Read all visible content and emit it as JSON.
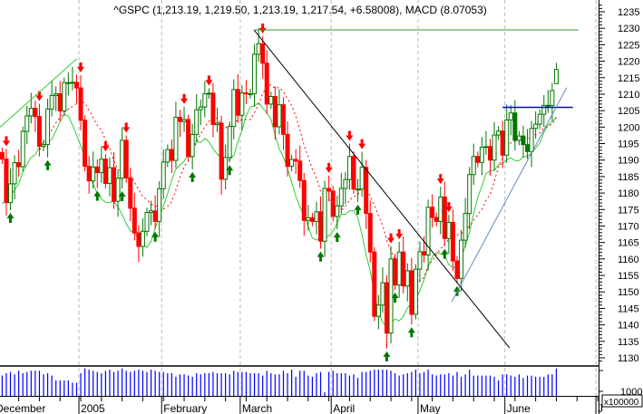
{
  "chart_data": {
    "type": "candlestick",
    "title": "^GSPC (1,213.19, 1,219.50, 1,213.19, 1,217.54, +6.58008), MACD (8.07053)",
    "ylim": [
      1128,
      1238
    ],
    "y_ticks": [
      "1235",
      "1230",
      "1225",
      "1220",
      "1215",
      "1210",
      "1205",
      "1200",
      "1195",
      "1190",
      "1185",
      "1180",
      "1175",
      "1170",
      "1165",
      "1160",
      "1155",
      "1150",
      "1145",
      "1140",
      "1135",
      "1130"
    ],
    "x_labels": [
      {
        "label": "December",
        "index": -4
      },
      {
        "label": "2005",
        "index": 19
      },
      {
        "label": "February",
        "index": 39
      },
      {
        "label": "March",
        "index": 58
      },
      {
        "label": "April",
        "index": 80
      },
      {
        "label": "May",
        "index": 101
      },
      {
        "label": "June",
        "index": 122
      },
      {
        "label": "J",
        "index": 144
      }
    ],
    "close": [
      1190.3,
      1177.1,
      1182.8,
      1189.2,
      1188.0,
      1198.7,
      1203.4,
      1205.7,
      1203.2,
      1194.2,
      1194.7,
      1205.5,
      1209.6,
      1210.1,
      1204.9,
      1213.5,
      1213.5,
      1213.6,
      1211.9,
      1202.1,
      1188.1,
      1183.7,
      1187.9,
      1186.2,
      1190.3,
      1182.9,
      1187.7,
      1177.5,
      1184.5,
      1196.0,
      1184.6,
      1175.4,
      1167.9,
      1163.8,
      1168.4,
      1174.1,
      1174.6,
      1171.4,
      1181.3,
      1189.4,
      1193.2,
      1189.9,
      1203.0,
      1201.7,
      1202.3,
      1191.1,
      1197.8,
      1205.3,
      1206.1,
      1210.1,
      1210.3,
      1200.8,
      1201.2,
      1184.2,
      1190.8,
      1200.2,
      1211.4,
      1203.6,
      1210.4,
      1210.1,
      1210.1,
      1222.1,
      1225.3,
      1219.4,
      1207.0,
      1209.3,
      1200.1,
      1206.8,
      1197.8,
      1188.1,
      1190.2,
      1189.7,
      1183.8,
      1171.7,
      1172.5,
      1171.4,
      1174.3,
      1165.4,
      1181.4,
      1180.6,
      1172.9,
      1176.1,
      1181.4,
      1184.1,
      1191.1,
      1181.2,
      1181.2,
      1187.8,
      1173.8,
      1162.1,
      1142.6,
      1146.0,
      1152.8,
      1137.5,
      1160.0,
      1152.1,
      1162.1,
      1151.8,
      1156.4,
      1143.2,
      1156.9,
      1162.2,
      1161.2,
      1175.7,
      1172.6,
      1171.4,
      1178.8,
      1166.2,
      1171.1,
      1159.4,
      1154.1,
      1165.7,
      1173.8,
      1185.6,
      1191.1,
      1189.3,
      1193.9,
      1194.1,
      1190.0,
      1197.6,
      1198.8,
      1191.5,
      1202.2,
      1204.3,
      1196.0,
      1197.3,
      1194.7,
      1192.6,
      1199.6,
      1200.9,
      1203.9,
      1206.6,
      1206.6,
      1211.1,
      1217.5
    ],
    "last_candle": {
      "open": 1213.19,
      "high": 1219.5,
      "low": 1213.19,
      "close": 1217.54,
      "change": 6.58008
    },
    "sell_arrows": [
      1,
      9,
      19,
      25,
      30,
      44,
      50,
      63,
      79,
      84,
      87,
      94,
      96,
      106,
      108
    ],
    "buy_arrows": [
      2,
      11,
      23,
      29,
      37,
      46,
      55,
      77,
      81,
      86,
      93,
      95,
      99,
      107,
      110
    ],
    "trendlines": [
      {
        "from": [
          -0.5,
          1200
        ],
        "to": [
          18,
          1220.7
        ],
        "color": "#33cc33"
      },
      {
        "from": [
          60.9,
          1229.5
        ],
        "to": [
          122.7,
          1133
        ],
        "color": "#000000"
      },
      {
        "from": [
          61,
          1229.5
        ],
        "to": [
          139.4,
          1229.5
        ],
        "color": "#339933"
      },
      {
        "from": [
          121,
          1206
        ],
        "to": [
          138,
          1206
        ],
        "color": "#0000ff"
      },
      {
        "from": [
          108.7,
          1147
        ],
        "to": [
          136.5,
          1212
        ],
        "color": "#6688bb"
      }
    ],
    "volume": {
      "unit_label": "x100000",
      "tick_label": "10000",
      "ylim": [
        0,
        25000
      ],
      "values": [
        17000,
        19000,
        20000,
        18000,
        21000,
        19000,
        20000,
        21000,
        21000,
        21000,
        18000,
        19000,
        17000,
        13000,
        13000,
        13000,
        13000,
        11000,
        11000,
        19000,
        23000,
        22000,
        21000,
        20000,
        19000,
        21000,
        22000,
        20000,
        21000,
        23000,
        21000,
        20000,
        21000,
        22000,
        21000,
        20000,
        22000,
        21000,
        20000,
        20000,
        19000,
        19000,
        16000,
        18000,
        18000,
        17000,
        16000,
        19000,
        18000,
        19000,
        19000,
        20000,
        19000,
        19000,
        19000,
        18000,
        21000,
        20000,
        20000,
        20000,
        19000,
        19000,
        19000,
        17000,
        21000,
        19000,
        18000,
        18000,
        21000,
        19000,
        22000,
        16000,
        21000,
        21000,
        17000,
        16000,
        19000,
        20000,
        3000,
        20000,
        21000,
        19000,
        19000,
        19000,
        17000,
        18000,
        15000,
        20000,
        20000,
        21000,
        22000,
        22000,
        22000,
        22000,
        21000,
        19000,
        17000,
        18000,
        19000,
        20000,
        22000,
        19000,
        20000,
        22000,
        18000,
        17000,
        18000,
        18000,
        19000,
        17000,
        20000,
        16000,
        18000,
        22000,
        17000,
        17000,
        17000,
        17000,
        17000,
        16000,
        13000,
        18000,
        18000,
        17000,
        16000,
        18000,
        15000,
        17000,
        17000,
        16000,
        16000,
        16000,
        18000,
        18000,
        23000
      ]
    },
    "colors": {
      "up": "#007700",
      "down_filled": "#007700",
      "down_red": "#ff0000",
      "sell_arrow": "#ff0000",
      "buy_arrow": "#007700",
      "indicator": "#33cc33",
      "moving_average": "#ff0000",
      "volume": "#0000ff",
      "grid": "#bbbbbb"
    },
    "grid": "vertical dashed at month starts",
    "legend": "none"
  }
}
